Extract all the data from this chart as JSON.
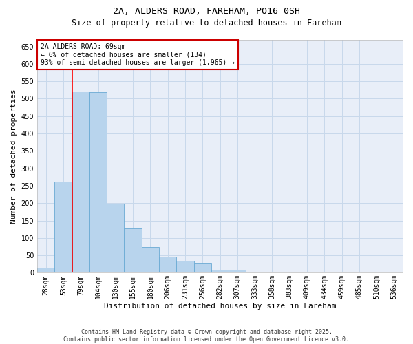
{
  "title1": "2A, ALDERS ROAD, FAREHAM, PO16 0SH",
  "title2": "Size of property relative to detached houses in Fareham",
  "xlabel": "Distribution of detached houses by size in Fareham",
  "ylabel": "Number of detached properties",
  "footnote": "Contains HM Land Registry data © Crown copyright and database right 2025.\nContains public sector information licensed under the Open Government Licence v3.0.",
  "bar_labels": [
    "28sqm",
    "53sqm",
    "79sqm",
    "104sqm",
    "130sqm",
    "155sqm",
    "180sqm",
    "206sqm",
    "231sqm",
    "256sqm",
    "282sqm",
    "307sqm",
    "333sqm",
    "358sqm",
    "383sqm",
    "409sqm",
    "434sqm",
    "459sqm",
    "485sqm",
    "510sqm",
    "536sqm"
  ],
  "bar_values": [
    15,
    262,
    521,
    518,
    198,
    128,
    73,
    47,
    34,
    28,
    9,
    9,
    3,
    2,
    1,
    1,
    1,
    1,
    1,
    1,
    2
  ],
  "bar_color": "#b8d4ed",
  "bar_edge_color": "#6aaad4",
  "grid_color": "#c8d8eb",
  "bg_color": "#e8eef8",
  "annotation_text": "2A ALDERS ROAD: 69sqm\n← 6% of detached houses are smaller (134)\n93% of semi-detached houses are larger (1,965) →",
  "annotation_box_color": "#ffffff",
  "annotation_border_color": "#cc0000",
  "red_line_x": 1.5,
  "ylim": [
    0,
    670
  ],
  "yticks": [
    0,
    50,
    100,
    150,
    200,
    250,
    300,
    350,
    400,
    450,
    500,
    550,
    600,
    650
  ],
  "title1_fontsize": 9.5,
  "title2_fontsize": 8.5,
  "ylabel_fontsize": 8,
  "xlabel_fontsize": 8,
  "tick_fontsize": 7,
  "footnote_fontsize": 6,
  "annotation_fontsize": 7
}
